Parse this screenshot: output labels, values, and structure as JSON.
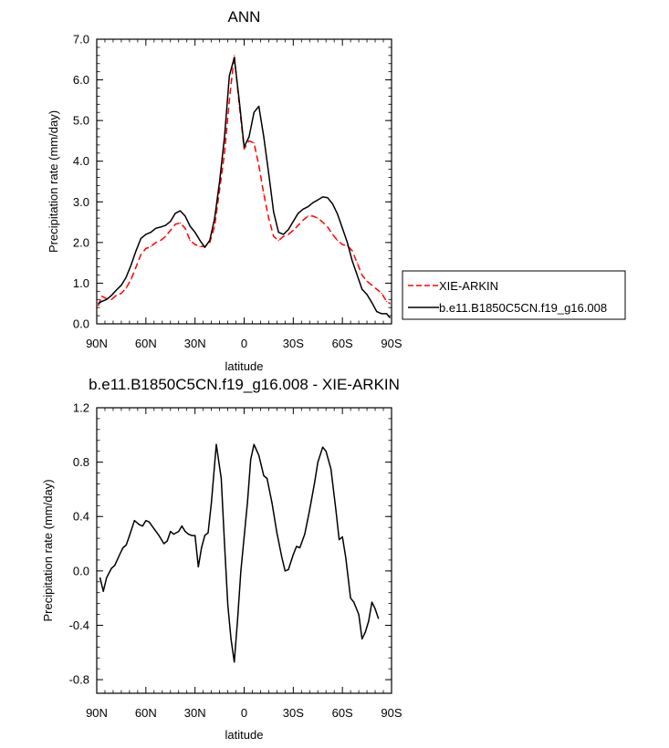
{
  "chart_data": [
    {
      "type": "line",
      "title": "ANN",
      "xlabel": "latitude",
      "ylabel": "Precipitation rate (mm/day)",
      "ylim": [
        0,
        7
      ],
      "xlim": [
        90,
        -90
      ],
      "x_ticks": [
        90,
        60,
        30,
        0,
        -30,
        -60,
        -90
      ],
      "x_tick_labels": [
        "90N",
        "60N",
        "30N",
        "0",
        "30S",
        "60S",
        "90S"
      ],
      "y_ticks": [
        0,
        1,
        2,
        3,
        4,
        5,
        6,
        7
      ],
      "y_tick_labels": [
        "0.0",
        "1.0",
        "2.0",
        "3.0",
        "4.0",
        "5.0",
        "6.0",
        "7.0"
      ],
      "legend_position": "right",
      "series": [
        {
          "name": "XIE-ARKIN",
          "color": "#ff0000",
          "dash": "dashed",
          "points": [
            [
              89,
              0.45
            ],
            [
              87,
              0.68
            ],
            [
              84,
              0.62
            ],
            [
              81,
              0.6
            ],
            [
              78,
              0.7
            ],
            [
              75,
              0.75
            ],
            [
              72,
              0.88
            ],
            [
              69,
              1.1
            ],
            [
              66,
              1.4
            ],
            [
              63,
              1.7
            ],
            [
              60,
              1.85
            ],
            [
              57,
              1.9
            ],
            [
              54,
              2.0
            ],
            [
              51,
              2.05
            ],
            [
              48,
              2.15
            ],
            [
              45,
              2.3
            ],
            [
              42,
              2.45
            ],
            [
              39,
              2.48
            ],
            [
              36,
              2.35
            ],
            [
              33,
              2.05
            ],
            [
              30,
              1.95
            ],
            [
              27,
              1.9
            ],
            [
              24,
              1.9
            ],
            [
              21,
              2.0
            ],
            [
              18,
              2.4
            ],
            [
              15,
              3.3
            ],
            [
              12,
              4.2
            ],
            [
              9,
              5.5
            ],
            [
              6,
              6.6
            ],
            [
              3,
              5.4
            ],
            [
              0,
              4.3
            ],
            [
              -3,
              4.5
            ],
            [
              -6,
              4.45
            ],
            [
              -9,
              3.9
            ],
            [
              -12,
              3.2
            ],
            [
              -15,
              2.6
            ],
            [
              -18,
              2.15
            ],
            [
              -21,
              2.05
            ],
            [
              -24,
              2.15
            ],
            [
              -27,
              2.2
            ],
            [
              -30,
              2.3
            ],
            [
              -33,
              2.42
            ],
            [
              -36,
              2.55
            ],
            [
              -39,
              2.65
            ],
            [
              -42,
              2.65
            ],
            [
              -45,
              2.6
            ],
            [
              -48,
              2.5
            ],
            [
              -51,
              2.38
            ],
            [
              -54,
              2.2
            ],
            [
              -57,
              2.05
            ],
            [
              -60,
              1.95
            ],
            [
              -63,
              1.92
            ],
            [
              -66,
              1.8
            ],
            [
              -69,
              1.5
            ],
            [
              -72,
              1.2
            ],
            [
              -75,
              1.05
            ],
            [
              -78,
              0.95
            ],
            [
              -81,
              0.85
            ],
            [
              -84,
              0.75
            ],
            [
              -87,
              0.55
            ],
            [
              -89,
              0.5
            ]
          ]
        },
        {
          "name": "b.e11.B1850C5CN.f19_g16.008",
          "color": "#000000",
          "dash": "solid",
          "points": [
            [
              89,
              0.5
            ],
            [
              87,
              0.55
            ],
            [
              84,
              0.6
            ],
            [
              81,
              0.7
            ],
            [
              78,
              0.83
            ],
            [
              75,
              0.95
            ],
            [
              72,
              1.15
            ],
            [
              69,
              1.45
            ],
            [
              66,
              1.8
            ],
            [
              63,
              2.1
            ],
            [
              60,
              2.2
            ],
            [
              57,
              2.25
            ],
            [
              54,
              2.35
            ],
            [
              51,
              2.38
            ],
            [
              48,
              2.42
            ],
            [
              45,
              2.52
            ],
            [
              42,
              2.72
            ],
            [
              39,
              2.78
            ],
            [
              36,
              2.65
            ],
            [
              33,
              2.4
            ],
            [
              30,
              2.25
            ],
            [
              27,
              2.05
            ],
            [
              24,
              1.88
            ],
            [
              21,
              2.05
            ],
            [
              18,
              2.6
            ],
            [
              15,
              3.5
            ],
            [
              12,
              4.6
            ],
            [
              9,
              6.1
            ],
            [
              6,
              6.55
            ],
            [
              3,
              5.5
            ],
            [
              0,
              4.35
            ],
            [
              -3,
              4.6
            ],
            [
              -6,
              5.2
            ],
            [
              -9,
              5.35
            ],
            [
              -12,
              4.6
            ],
            [
              -15,
              3.7
            ],
            [
              -18,
              2.75
            ],
            [
              -21,
              2.25
            ],
            [
              -24,
              2.2
            ],
            [
              -27,
              2.32
            ],
            [
              -30,
              2.52
            ],
            [
              -33,
              2.72
            ],
            [
              -36,
              2.82
            ],
            [
              -39,
              2.88
            ],
            [
              -42,
              2.98
            ],
            [
              -45,
              3.05
            ],
            [
              -48,
              3.12
            ],
            [
              -51,
              3.1
            ],
            [
              -54,
              2.95
            ],
            [
              -57,
              2.7
            ],
            [
              -60,
              2.35
            ],
            [
              -63,
              2.0
            ],
            [
              -66,
              1.55
            ],
            [
              -69,
              1.2
            ],
            [
              -72,
              0.85
            ],
            [
              -75,
              0.72
            ],
            [
              -78,
              0.52
            ],
            [
              -81,
              0.3
            ],
            [
              -84,
              0.25
            ],
            [
              -87,
              0.25
            ],
            [
              -89,
              0.15
            ]
          ]
        }
      ]
    },
    {
      "type": "line",
      "title": "b.e11.B1850C5CN.f19_g16.008 - XIE-ARKIN",
      "xlabel": "latitude",
      "ylabel": "Precipitation rate (mm/day)",
      "ylim": [
        -0.9,
        1.2
      ],
      "xlim": [
        90,
        -90
      ],
      "x_ticks": [
        90,
        60,
        30,
        0,
        -30,
        -60,
        -90
      ],
      "x_tick_labels": [
        "90N",
        "60N",
        "30N",
        "0",
        "30S",
        "60S",
        "90S"
      ],
      "y_ticks": [
        1.2,
        0.8,
        0.4,
        0.0,
        -0.4,
        -0.8
      ],
      "y_tick_labels": [
        "1.2",
        "0.8",
        "0.4",
        "0.0",
        "-0.4",
        "-0.8"
      ],
      "series": [
        {
          "color": "#000000",
          "dash": "solid",
          "points": [
            [
              88,
              -0.05
            ],
            [
              86,
              -0.15
            ],
            [
              84,
              -0.05
            ],
            [
              81,
              0.02
            ],
            [
              79,
              0.04
            ],
            [
              76,
              0.12
            ],
            [
              74,
              0.17
            ],
            [
              72,
              0.19
            ],
            [
              70,
              0.26
            ],
            [
              67,
              0.37
            ],
            [
              64,
              0.34
            ],
            [
              62,
              0.33
            ],
            [
              60,
              0.37
            ],
            [
              58,
              0.36
            ],
            [
              55,
              0.31
            ],
            [
              52,
              0.26
            ],
            [
              49,
              0.2
            ],
            [
              47,
              0.22
            ],
            [
              45,
              0.29
            ],
            [
              43,
              0.27
            ],
            [
              40,
              0.29
            ],
            [
              38,
              0.33
            ],
            [
              36,
              0.29
            ],
            [
              34,
              0.27
            ],
            [
              32,
              0.26
            ],
            [
              30,
              0.26
            ],
            [
              28,
              0.03
            ],
            [
              26,
              0.17
            ],
            [
              24,
              0.26
            ],
            [
              22,
              0.28
            ],
            [
              20,
              0.5
            ],
            [
              17,
              0.93
            ],
            [
              14,
              0.68
            ],
            [
              12,
              0.2
            ],
            [
              10,
              -0.25
            ],
            [
              8,
              -0.5
            ],
            [
              6,
              -0.67
            ],
            [
              4,
              -0.36
            ],
            [
              2,
              0.0
            ],
            [
              0,
              0.25
            ],
            [
              -2,
              0.5
            ],
            [
              -4,
              0.82
            ],
            [
              -6,
              0.93
            ],
            [
              -9,
              0.85
            ],
            [
              -12,
              0.7
            ],
            [
              -14,
              0.68
            ],
            [
              -17,
              0.5
            ],
            [
              -20,
              0.28
            ],
            [
              -23,
              0.1
            ],
            [
              -25,
              0.0
            ],
            [
              -27,
              0.01
            ],
            [
              -30,
              0.12
            ],
            [
              -32,
              0.18
            ],
            [
              -34,
              0.17
            ],
            [
              -37,
              0.27
            ],
            [
              -40,
              0.45
            ],
            [
              -43,
              0.65
            ],
            [
              -45,
              0.8
            ],
            [
              -48,
              0.91
            ],
            [
              -50,
              0.88
            ],
            [
              -53,
              0.75
            ],
            [
              -56,
              0.45
            ],
            [
              -58,
              0.23
            ],
            [
              -60,
              0.25
            ],
            [
              -62,
              0.1
            ],
            [
              -65,
              -0.2
            ],
            [
              -67,
              -0.23
            ],
            [
              -70,
              -0.32
            ],
            [
              -72,
              -0.5
            ],
            [
              -74,
              -0.45
            ],
            [
              -76,
              -0.37
            ],
            [
              -78,
              -0.23
            ],
            [
              -80,
              -0.28
            ],
            [
              -82,
              -0.35
            ]
          ]
        }
      ]
    }
  ]
}
